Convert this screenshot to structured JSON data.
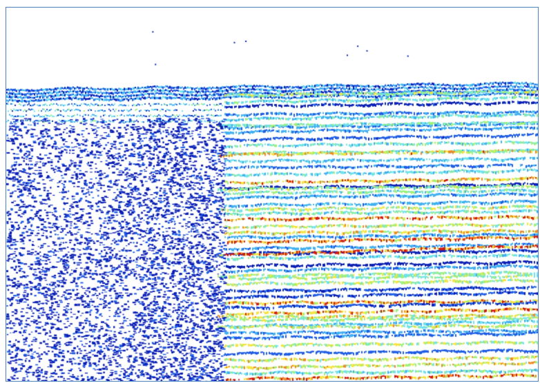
{
  "image": {
    "kind": "seismic-reflection-section",
    "text": "",
    "colormap": [
      "#0a1fb4",
      "#1e5ce6",
      "#3fb0f0",
      "#6fe3e8",
      "#9ef07a",
      "#f5e43a",
      "#f08a1e",
      "#d11a10"
    ],
    "frame_color": "#4a7fc0",
    "background": "#ffffff"
  }
}
